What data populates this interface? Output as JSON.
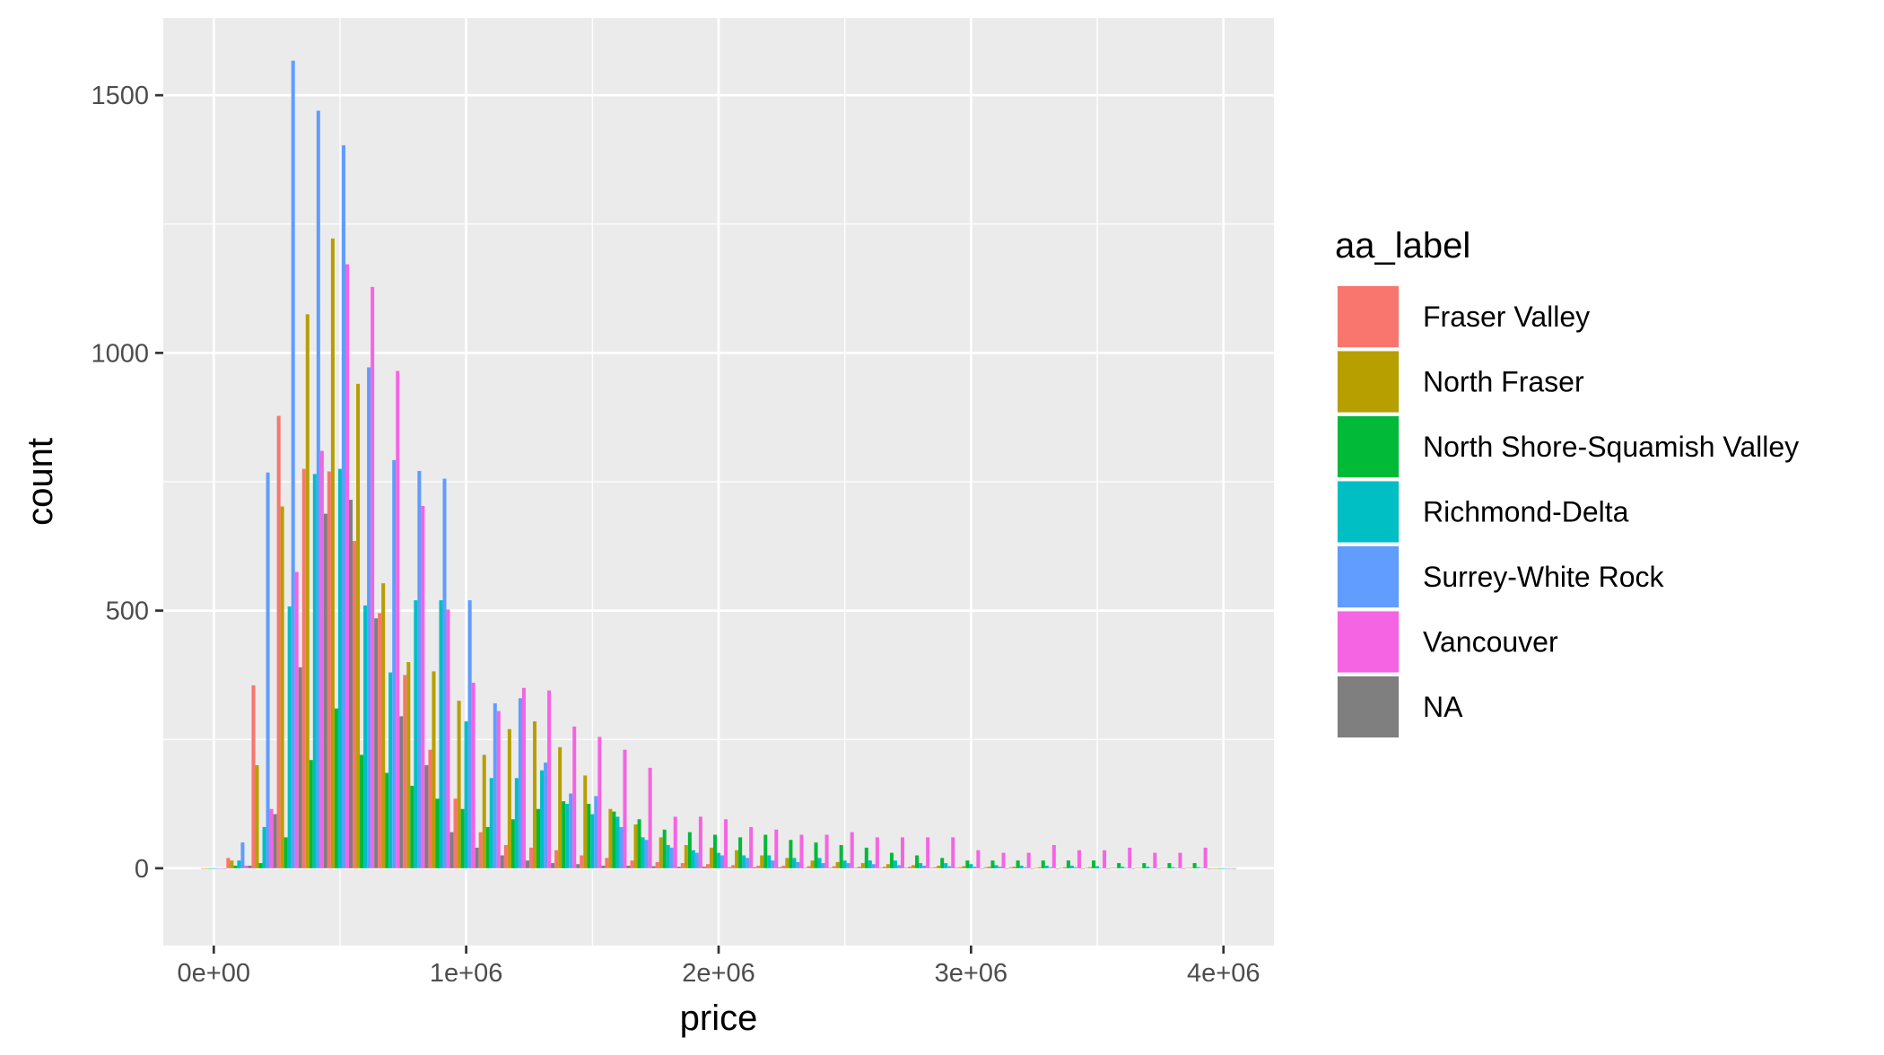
{
  "chart_data": {
    "type": "bar",
    "title": "",
    "xlabel": "price",
    "ylabel": "count",
    "xlim": [
      -200000,
      4200000
    ],
    "ylim": [
      -150,
      1650
    ],
    "x_ticks": [
      0,
      1000000,
      2000000,
      3000000,
      4000000
    ],
    "x_tick_labels": [
      "0e+00",
      "1e+06",
      "2e+06",
      "3e+06",
      "4e+06"
    ],
    "y_ticks": [
      0,
      500,
      1000,
      1500
    ],
    "y_tick_labels": [
      "0",
      "500",
      "1000",
      "1500"
    ],
    "grid": true,
    "legend_position": "right",
    "legend_title": "aa_label",
    "bin_width": 100000,
    "x": [
      0,
      100000,
      200000,
      300000,
      400000,
      500000,
      600000,
      700000,
      800000,
      900000,
      1000000,
      1100000,
      1200000,
      1300000,
      1400000,
      1500000,
      1600000,
      1700000,
      1800000,
      1900000,
      2000000,
      2100000,
      2200000,
      2300000,
      2400000,
      2500000,
      2600000,
      2700000,
      2800000,
      2900000,
      3000000,
      3100000,
      3200000,
      3300000,
      3400000,
      3500000,
      3600000,
      3700000,
      3800000,
      3900000,
      4000000
    ],
    "series": [
      {
        "name": "Fraser Valley",
        "color": "#F8766D",
        "values": [
          0,
          20,
          355,
          878,
          775,
          770,
          635,
          495,
          375,
          230,
          135,
          70,
          45,
          40,
          35,
          25,
          20,
          15,
          12,
          10,
          8,
          6,
          5,
          5,
          4,
          4,
          3,
          3,
          3,
          2,
          2,
          2,
          2,
          1,
          1,
          1,
          1,
          1,
          1,
          1,
          0
        ]
      },
      {
        "name": "North Fraser",
        "color": "#B79F00",
        "values": [
          0,
          15,
          200,
          702,
          1075,
          1222,
          940,
          553,
          400,
          382,
          325,
          220,
          270,
          285,
          235,
          180,
          115,
          85,
          60,
          45,
          40,
          35,
          25,
          20,
          15,
          12,
          10,
          8,
          6,
          5,
          4,
          3,
          3,
          2,
          2,
          2,
          1,
          1,
          1,
          1,
          0
        ]
      },
      {
        "name": "North Shore-Squamish Valley",
        "color": "#00BA38",
        "values": [
          0,
          5,
          10,
          60,
          210,
          310,
          220,
          185,
          160,
          135,
          115,
          80,
          95,
          115,
          130,
          125,
          110,
          95,
          75,
          70,
          65,
          60,
          65,
          55,
          50,
          45,
          40,
          30,
          25,
          20,
          15,
          15,
          15,
          15,
          15,
          15,
          10,
          10,
          10,
          10,
          0
        ]
      },
      {
        "name": "Richmond-Delta",
        "color": "#00BFC4",
        "values": [
          0,
          15,
          80,
          508,
          765,
          775,
          510,
          380,
          520,
          520,
          285,
          175,
          175,
          190,
          125,
          105,
          100,
          60,
          45,
          35,
          30,
          25,
          25,
          20,
          20,
          15,
          15,
          15,
          10,
          10,
          8,
          6,
          5,
          5,
          5,
          4,
          3,
          3,
          2,
          2,
          0
        ]
      },
      {
        "name": "Surrey-White Rock",
        "color": "#619CFF",
        "values": [
          0,
          50,
          768,
          1567,
          1470,
          1403,
          972,
          792,
          771,
          756,
          520,
          320,
          330,
          205,
          145,
          140,
          80,
          55,
          40,
          30,
          25,
          20,
          15,
          12,
          10,
          10,
          8,
          6,
          5,
          4,
          3,
          3,
          2,
          2,
          2,
          1,
          1,
          1,
          1,
          1,
          0
        ]
      },
      {
        "name": "Vancouver",
        "color": "#F564E3",
        "values": [
          0,
          5,
          115,
          575,
          810,
          1172,
          1128,
          965,
          703,
          502,
          360,
          305,
          350,
          345,
          275,
          255,
          230,
          195,
          100,
          100,
          95,
          80,
          75,
          65,
          65,
          70,
          60,
          60,
          60,
          60,
          35,
          30,
          30,
          45,
          35,
          35,
          40,
          30,
          30,
          40,
          0
        ]
      },
      {
        "name": "NA",
        "color": "#7F7F7F",
        "values": [
          0,
          5,
          105,
          390,
          688,
          715,
          485,
          295,
          200,
          70,
          40,
          25,
          15,
          10,
          8,
          5,
          5,
          4,
          3,
          3,
          2,
          2,
          2,
          1,
          1,
          1,
          1,
          1,
          1,
          1,
          0,
          0,
          0,
          0,
          0,
          0,
          0,
          0,
          0,
          0,
          0
        ]
      }
    ]
  }
}
